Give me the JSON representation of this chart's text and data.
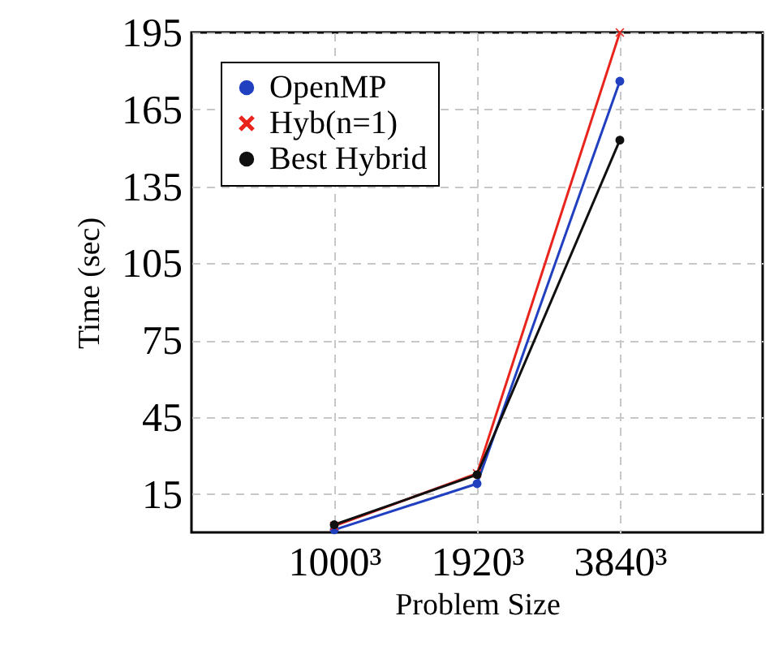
{
  "chart_data": {
    "type": "line",
    "xlabel": "Problem Size",
    "ylabel": "Time (sec)",
    "categories": [
      "1000³",
      "1920³",
      "3840³"
    ],
    "series": [
      {
        "name": "OpenMP",
        "color": "#2040c0",
        "marker": "circle",
        "values": [
          1,
          19,
          176
        ]
      },
      {
        "name": "Hyb(n=1)",
        "color": "#e8241c",
        "marker": "cross",
        "values": [
          2.5,
          23,
          195
        ]
      },
      {
        "name": "Best Hybrid",
        "color": "#101010",
        "marker": "circle",
        "values": [
          3,
          22.5,
          153
        ]
      }
    ],
    "ylim": [
      0,
      195
    ],
    "yticks": [
      15,
      45,
      75,
      105,
      135,
      165,
      195
    ],
    "grid": true,
    "legend": "top left"
  }
}
